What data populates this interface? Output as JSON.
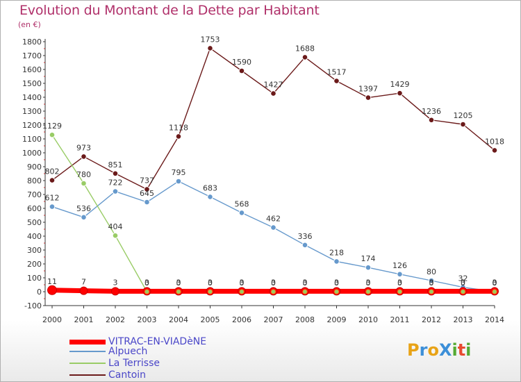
{
  "title": "Evolution du Montant de la Dette par Habitant",
  "subtitle": "(en €)",
  "logo_text": "ProXiti",
  "chart_data": {
    "type": "line",
    "x": [
      "2000",
      "2001",
      "2002",
      "2003",
      "2004",
      "2005",
      "2006",
      "2007",
      "2008",
      "2009",
      "2010",
      "2011",
      "2012",
      "2013",
      "2014"
    ],
    "ylim": [
      -100,
      1800
    ],
    "yticks": [
      "-100",
      "0",
      "100",
      "200",
      "300",
      "400",
      "500",
      "600",
      "700",
      "800",
      "900",
      "1000",
      "1100",
      "1200",
      "1300",
      "1400",
      "1500",
      "1600",
      "1700",
      "1800"
    ],
    "grid": false,
    "legend_position": "bottom-left",
    "series": [
      {
        "name": "VITRAC-EN-VIADèNE",
        "color": "#ff0000",
        "values": [
          11,
          7,
          3,
          3,
          3,
          3,
          3,
          3,
          3,
          3,
          3,
          3,
          3,
          3,
          3
        ],
        "labels": [
          "11",
          "7",
          "3",
          "3",
          "3",
          "3",
          "3",
          "3",
          "3",
          "3",
          "3",
          "3",
          "3",
          "3",
          "3"
        ]
      },
      {
        "name": "Alpuech",
        "color": "#6699cc",
        "values": [
          612,
          536,
          722,
          645,
          795,
          683,
          568,
          462,
          336,
          218,
          174,
          126,
          80,
          32,
          0
        ],
        "labels": [
          "612",
          "536",
          "722",
          "645",
          "795",
          "683",
          "568",
          "462",
          "336",
          "218",
          "174",
          "126",
          "80",
          "32",
          "0"
        ]
      },
      {
        "name": "La Terrisse",
        "color": "#99cc66",
        "values": [
          1129,
          780,
          404,
          0,
          0,
          0,
          0,
          0,
          0,
          0,
          0,
          0,
          0,
          0,
          0
        ],
        "labels": [
          "1129",
          "780",
          "404",
          "0",
          "0",
          "0",
          "0",
          "0",
          "0",
          "0",
          "0",
          "0",
          "0",
          "0",
          "0"
        ]
      },
      {
        "name": "Cantoin",
        "color": "#6b1a1a",
        "values": [
          802,
          973,
          851,
          737,
          1118,
          1753,
          1590,
          1427,
          1688,
          1517,
          1397,
          1429,
          1236,
          1205,
          1018
        ],
        "labels": [
          "802",
          "973",
          "851",
          "737",
          "1118",
          "1753",
          "1590",
          "1427",
          "1688",
          "1517",
          "1397",
          "1429",
          "1236",
          "1205",
          "1018"
        ]
      }
    ]
  }
}
